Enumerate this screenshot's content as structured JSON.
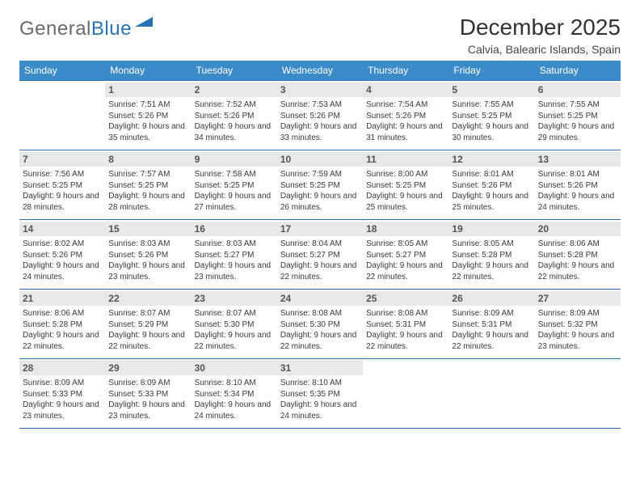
{
  "logo": {
    "text1": "General",
    "text2": "Blue"
  },
  "title": "December 2025",
  "location": "Calvia, Balearic Islands, Spain",
  "colors": {
    "header_bg": "#3b8bc8",
    "divider": "#2a72b5",
    "daynum_bg": "#e8e8e8",
    "text": "#3a3a3a",
    "logo_gray": "#6b6b6b",
    "logo_blue": "#2a72b5",
    "background": "#ffffff"
  },
  "weekdays": [
    "Sunday",
    "Monday",
    "Tuesday",
    "Wednesday",
    "Thursday",
    "Friday",
    "Saturday"
  ],
  "weeks": [
    [
      null,
      {
        "d": "1",
        "sr": "Sunrise: 7:51 AM",
        "ss": "Sunset: 5:26 PM",
        "dl": "Daylight: 9 hours and 35 minutes."
      },
      {
        "d": "2",
        "sr": "Sunrise: 7:52 AM",
        "ss": "Sunset: 5:26 PM",
        "dl": "Daylight: 9 hours and 34 minutes."
      },
      {
        "d": "3",
        "sr": "Sunrise: 7:53 AM",
        "ss": "Sunset: 5:26 PM",
        "dl": "Daylight: 9 hours and 33 minutes."
      },
      {
        "d": "4",
        "sr": "Sunrise: 7:54 AM",
        "ss": "Sunset: 5:26 PM",
        "dl": "Daylight: 9 hours and 31 minutes."
      },
      {
        "d": "5",
        "sr": "Sunrise: 7:55 AM",
        "ss": "Sunset: 5:25 PM",
        "dl": "Daylight: 9 hours and 30 minutes."
      },
      {
        "d": "6",
        "sr": "Sunrise: 7:55 AM",
        "ss": "Sunset: 5:25 PM",
        "dl": "Daylight: 9 hours and 29 minutes."
      }
    ],
    [
      {
        "d": "7",
        "sr": "Sunrise: 7:56 AM",
        "ss": "Sunset: 5:25 PM",
        "dl": "Daylight: 9 hours and 28 minutes."
      },
      {
        "d": "8",
        "sr": "Sunrise: 7:57 AM",
        "ss": "Sunset: 5:25 PM",
        "dl": "Daylight: 9 hours and 28 minutes."
      },
      {
        "d": "9",
        "sr": "Sunrise: 7:58 AM",
        "ss": "Sunset: 5:25 PM",
        "dl": "Daylight: 9 hours and 27 minutes."
      },
      {
        "d": "10",
        "sr": "Sunrise: 7:59 AM",
        "ss": "Sunset: 5:25 PM",
        "dl": "Daylight: 9 hours and 26 minutes."
      },
      {
        "d": "11",
        "sr": "Sunrise: 8:00 AM",
        "ss": "Sunset: 5:25 PM",
        "dl": "Daylight: 9 hours and 25 minutes."
      },
      {
        "d": "12",
        "sr": "Sunrise: 8:01 AM",
        "ss": "Sunset: 5:26 PM",
        "dl": "Daylight: 9 hours and 25 minutes."
      },
      {
        "d": "13",
        "sr": "Sunrise: 8:01 AM",
        "ss": "Sunset: 5:26 PM",
        "dl": "Daylight: 9 hours and 24 minutes."
      }
    ],
    [
      {
        "d": "14",
        "sr": "Sunrise: 8:02 AM",
        "ss": "Sunset: 5:26 PM",
        "dl": "Daylight: 9 hours and 24 minutes."
      },
      {
        "d": "15",
        "sr": "Sunrise: 8:03 AM",
        "ss": "Sunset: 5:26 PM",
        "dl": "Daylight: 9 hours and 23 minutes."
      },
      {
        "d": "16",
        "sr": "Sunrise: 8:03 AM",
        "ss": "Sunset: 5:27 PM",
        "dl": "Daylight: 9 hours and 23 minutes."
      },
      {
        "d": "17",
        "sr": "Sunrise: 8:04 AM",
        "ss": "Sunset: 5:27 PM",
        "dl": "Daylight: 9 hours and 22 minutes."
      },
      {
        "d": "18",
        "sr": "Sunrise: 8:05 AM",
        "ss": "Sunset: 5:27 PM",
        "dl": "Daylight: 9 hours and 22 minutes."
      },
      {
        "d": "19",
        "sr": "Sunrise: 8:05 AM",
        "ss": "Sunset: 5:28 PM",
        "dl": "Daylight: 9 hours and 22 minutes."
      },
      {
        "d": "20",
        "sr": "Sunrise: 8:06 AM",
        "ss": "Sunset: 5:28 PM",
        "dl": "Daylight: 9 hours and 22 minutes."
      }
    ],
    [
      {
        "d": "21",
        "sr": "Sunrise: 8:06 AM",
        "ss": "Sunset: 5:28 PM",
        "dl": "Daylight: 9 hours and 22 minutes."
      },
      {
        "d": "22",
        "sr": "Sunrise: 8:07 AM",
        "ss": "Sunset: 5:29 PM",
        "dl": "Daylight: 9 hours and 22 minutes."
      },
      {
        "d": "23",
        "sr": "Sunrise: 8:07 AM",
        "ss": "Sunset: 5:30 PM",
        "dl": "Daylight: 9 hours and 22 minutes."
      },
      {
        "d": "24",
        "sr": "Sunrise: 8:08 AM",
        "ss": "Sunset: 5:30 PM",
        "dl": "Daylight: 9 hours and 22 minutes."
      },
      {
        "d": "25",
        "sr": "Sunrise: 8:08 AM",
        "ss": "Sunset: 5:31 PM",
        "dl": "Daylight: 9 hours and 22 minutes."
      },
      {
        "d": "26",
        "sr": "Sunrise: 8:09 AM",
        "ss": "Sunset: 5:31 PM",
        "dl": "Daylight: 9 hours and 22 minutes."
      },
      {
        "d": "27",
        "sr": "Sunrise: 8:09 AM",
        "ss": "Sunset: 5:32 PM",
        "dl": "Daylight: 9 hours and 23 minutes."
      }
    ],
    [
      {
        "d": "28",
        "sr": "Sunrise: 8:09 AM",
        "ss": "Sunset: 5:33 PM",
        "dl": "Daylight: 9 hours and 23 minutes."
      },
      {
        "d": "29",
        "sr": "Sunrise: 8:09 AM",
        "ss": "Sunset: 5:33 PM",
        "dl": "Daylight: 9 hours and 23 minutes."
      },
      {
        "d": "30",
        "sr": "Sunrise: 8:10 AM",
        "ss": "Sunset: 5:34 PM",
        "dl": "Daylight: 9 hours and 24 minutes."
      },
      {
        "d": "31",
        "sr": "Sunrise: 8:10 AM",
        "ss": "Sunset: 5:35 PM",
        "dl": "Daylight: 9 hours and 24 minutes."
      },
      null,
      null,
      null
    ]
  ]
}
